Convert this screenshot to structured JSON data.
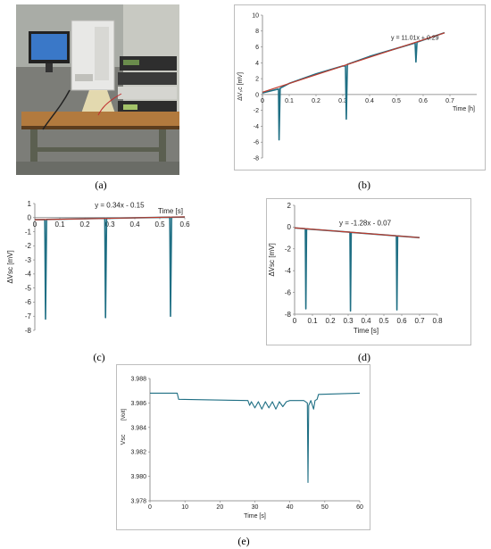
{
  "captions": {
    "a": "(a)",
    "b": "(b)",
    "c": "(c)",
    "d": "(d)",
    "e": "(e)"
  },
  "photo": {
    "panel_label": "(a)"
  },
  "chart_data": [
    {
      "id": "b",
      "type": "line",
      "equation": "y = 11.01x + 0.29",
      "xlabel": "Time [h]",
      "ylabel": "ΔVₛc [mV]",
      "xlim": [
        0,
        0.8
      ],
      "ylim": [
        -8,
        10
      ],
      "xticks": [
        "0",
        "0.1",
        "0.2",
        "0.3",
        "0.4",
        "0.5",
        "0.6",
        "0.7"
      ],
      "yticks": [
        "10",
        "8",
        "6",
        "4",
        "2",
        "0",
        "-2",
        "-4",
        "-6",
        "-8"
      ],
      "fit": {
        "slope": 11.01,
        "intercept": 0.29,
        "x": [
          0,
          0.68
        ]
      },
      "series": [
        {
          "values": [
            [
              0,
              0.2
            ],
            [
              0.06,
              0.7
            ],
            [
              0.062,
              -5.7
            ],
            [
              0.066,
              0.8
            ],
            [
              0.1,
              1.4
            ],
            [
              0.2,
              2.6
            ],
            [
              0.3,
              3.6
            ],
            [
              0.31,
              3.6
            ],
            [
              0.313,
              -3.1
            ],
            [
              0.317,
              3.8
            ],
            [
              0.4,
              4.8
            ],
            [
              0.5,
              5.8
            ],
            [
              0.57,
              6.5
            ],
            [
              0.573,
              4.1
            ],
            [
              0.577,
              6.6
            ],
            [
              0.68,
              7.8
            ]
          ]
        }
      ],
      "grid": false
    },
    {
      "id": "c",
      "type": "line",
      "equation": "y = 0.34x - 0.15",
      "xlabel": "Time [s]",
      "ylabel": "ΔVsc [mV]",
      "xlim": [
        0,
        0.6
      ],
      "ylim": [
        -8,
        1
      ],
      "xticks": [
        "0",
        "0.1",
        "0.2",
        "0.3",
        "0.4",
        "0.5",
        "0.6"
      ],
      "yticks": [
        "1",
        "0",
        "-1",
        "-2",
        "-3",
        "-4",
        "-5",
        "-6",
        "-7",
        "-8"
      ],
      "fit": {
        "slope": 0.34,
        "intercept": -0.15,
        "x": [
          0,
          0.6
        ]
      },
      "series": [
        {
          "values": [
            [
              0,
              -0.15
            ],
            [
              0.04,
              -0.14
            ],
            [
              0.043,
              -7.2
            ],
            [
              0.047,
              -0.13
            ],
            [
              0.28,
              -0.05
            ],
            [
              0.283,
              -7.1
            ],
            [
              0.287,
              -0.05
            ],
            [
              0.54,
              0.03
            ],
            [
              0.543,
              -7.0
            ],
            [
              0.547,
              0.03
            ],
            [
              0.6,
              0.05
            ]
          ]
        }
      ],
      "grid": false
    },
    {
      "id": "d",
      "type": "line",
      "equation": "y = -1.28x - 0.07",
      "xlabel": "Time [s]",
      "ylabel": "ΔVsc [mV]",
      "xlim": [
        0,
        0.8
      ],
      "ylim": [
        -8,
        2
      ],
      "xticks": [
        "0",
        "0.1",
        "0.2",
        "0.3",
        "0.4",
        "0.5",
        "0.6",
        "0.7",
        "0.8"
      ],
      "yticks": [
        "2",
        "0",
        "-2",
        "-4",
        "-6",
        "-8"
      ],
      "fit": {
        "slope": -1.28,
        "intercept": -0.07,
        "x": [
          0,
          0.7
        ]
      },
      "series": [
        {
          "values": [
            [
              0,
              -0.07
            ],
            [
              0.06,
              -0.15
            ],
            [
              0.063,
              -7.5
            ],
            [
              0.067,
              -0.16
            ],
            [
              0.31,
              -0.47
            ],
            [
              0.313,
              -7.7
            ],
            [
              0.317,
              -0.48
            ],
            [
              0.57,
              -0.8
            ],
            [
              0.573,
              -7.6
            ],
            [
              0.577,
              -0.81
            ],
            [
              0.7,
              -0.97
            ]
          ]
        }
      ],
      "grid": false
    },
    {
      "id": "e",
      "type": "line",
      "xlabel": "Time [s]",
      "ylabel": "Vsc",
      "yunit": "[Volt]",
      "xlim": [
        0,
        60
      ],
      "ylim": [
        3.978,
        3.988
      ],
      "xticks": [
        "0",
        "10",
        "20",
        "30",
        "40",
        "50",
        "60"
      ],
      "yticks": [
        "3.988",
        "3.986",
        "3.984",
        "3.982",
        "3.980",
        "3.978"
      ],
      "series": [
        {
          "values": [
            [
              0,
              3.9868
            ],
            [
              7.8,
              3.9868
            ],
            [
              8.2,
              3.9863
            ],
            [
              28,
              3.9862
            ],
            [
              28.5,
              3.9858
            ],
            [
              29,
              3.9861
            ],
            [
              30,
              3.9856
            ],
            [
              31,
              3.9861
            ],
            [
              32,
              3.9855
            ],
            [
              33,
              3.9861
            ],
            [
              34,
              3.9856
            ],
            [
              35,
              3.9861
            ],
            [
              36,
              3.9855
            ],
            [
              37,
              3.9861
            ],
            [
              38,
              3.9857
            ],
            [
              39,
              3.9861
            ],
            [
              40,
              3.9862
            ],
            [
              44,
              3.9862
            ],
            [
              45,
              3.986
            ],
            [
              45.2,
              3.9795
            ],
            [
              45.4,
              3.9858
            ],
            [
              46,
              3.9862
            ],
            [
              46.8,
              3.9855
            ],
            [
              47.2,
              3.9862
            ],
            [
              47.8,
              3.9863
            ],
            [
              48.2,
              3.9867
            ],
            [
              60,
              3.9868
            ]
          ]
        }
      ],
      "grid": false
    }
  ]
}
